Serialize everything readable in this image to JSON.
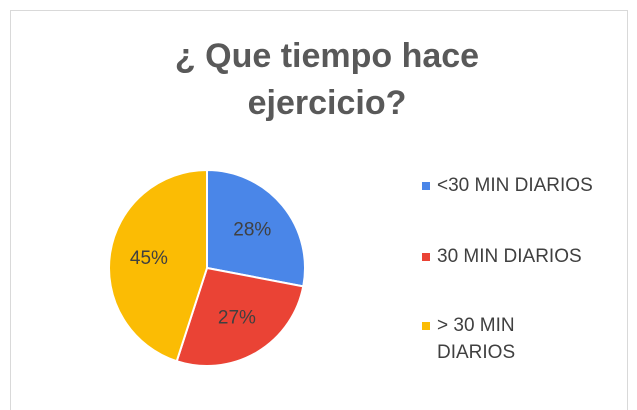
{
  "chart_data": {
    "type": "pie",
    "title": "¿ Que tiempo hace ejercicio?",
    "categories": [
      "<30 MIN DIARIOS",
      "30 MIN DIARIOS",
      "> 30 MIN DIARIOS"
    ],
    "values": [
      28,
      27,
      45
    ],
    "value_labels": [
      "28%",
      "27%",
      "45%"
    ],
    "colors": [
      "#4a86e8",
      "#ea4335",
      "#fbbc04"
    ],
    "legend": "right"
  }
}
